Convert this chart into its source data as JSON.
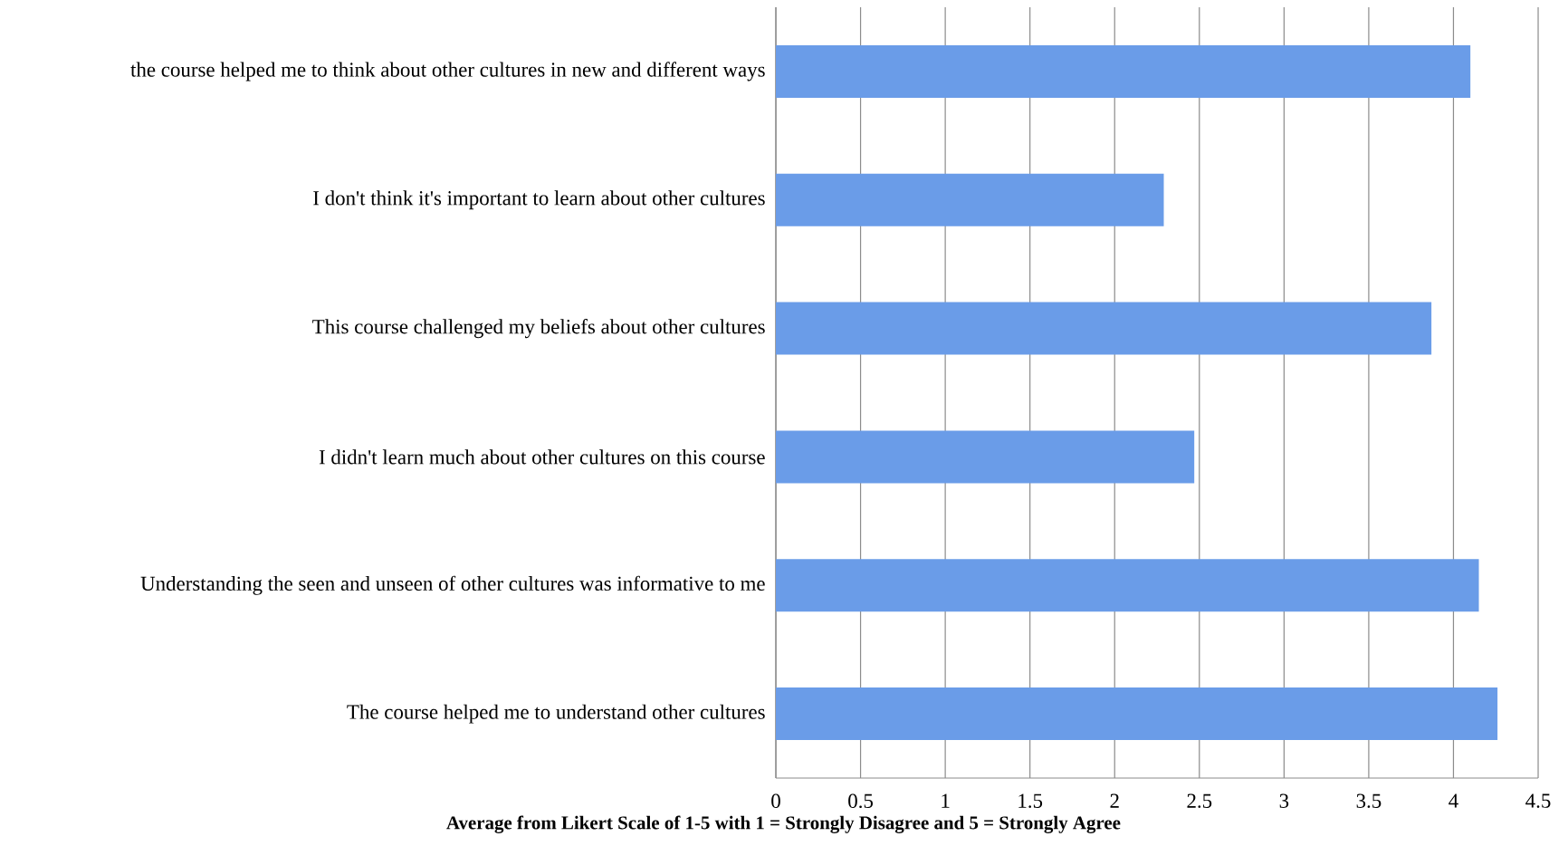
{
  "chart_data": {
    "type": "bar",
    "orientation": "horizontal",
    "xlabel": "Average from Likert Scale of 1-5 with 1 = Strongly Disagree and 5 = Strongly Agree",
    "categories": [
      "the course helped me to think about other cultures in new and different ways",
      "I don't think it's important to learn about other cultures",
      "This course challenged my beliefs about other cultures",
      "I didn't learn much about other cultures on this course",
      "Understanding the seen and unseen of other cultures was informative to me",
      "The course helped me to understand other cultures"
    ],
    "values": [
      4.1,
      2.29,
      3.87,
      2.47,
      4.15,
      4.26
    ],
    "color": "#6a9ce8",
    "xlim": [
      0,
      4.5
    ],
    "xticks": [
      0,
      0.5,
      1,
      1.5,
      2,
      2.5,
      3,
      3.5,
      4,
      4.5
    ],
    "grid": "x"
  }
}
